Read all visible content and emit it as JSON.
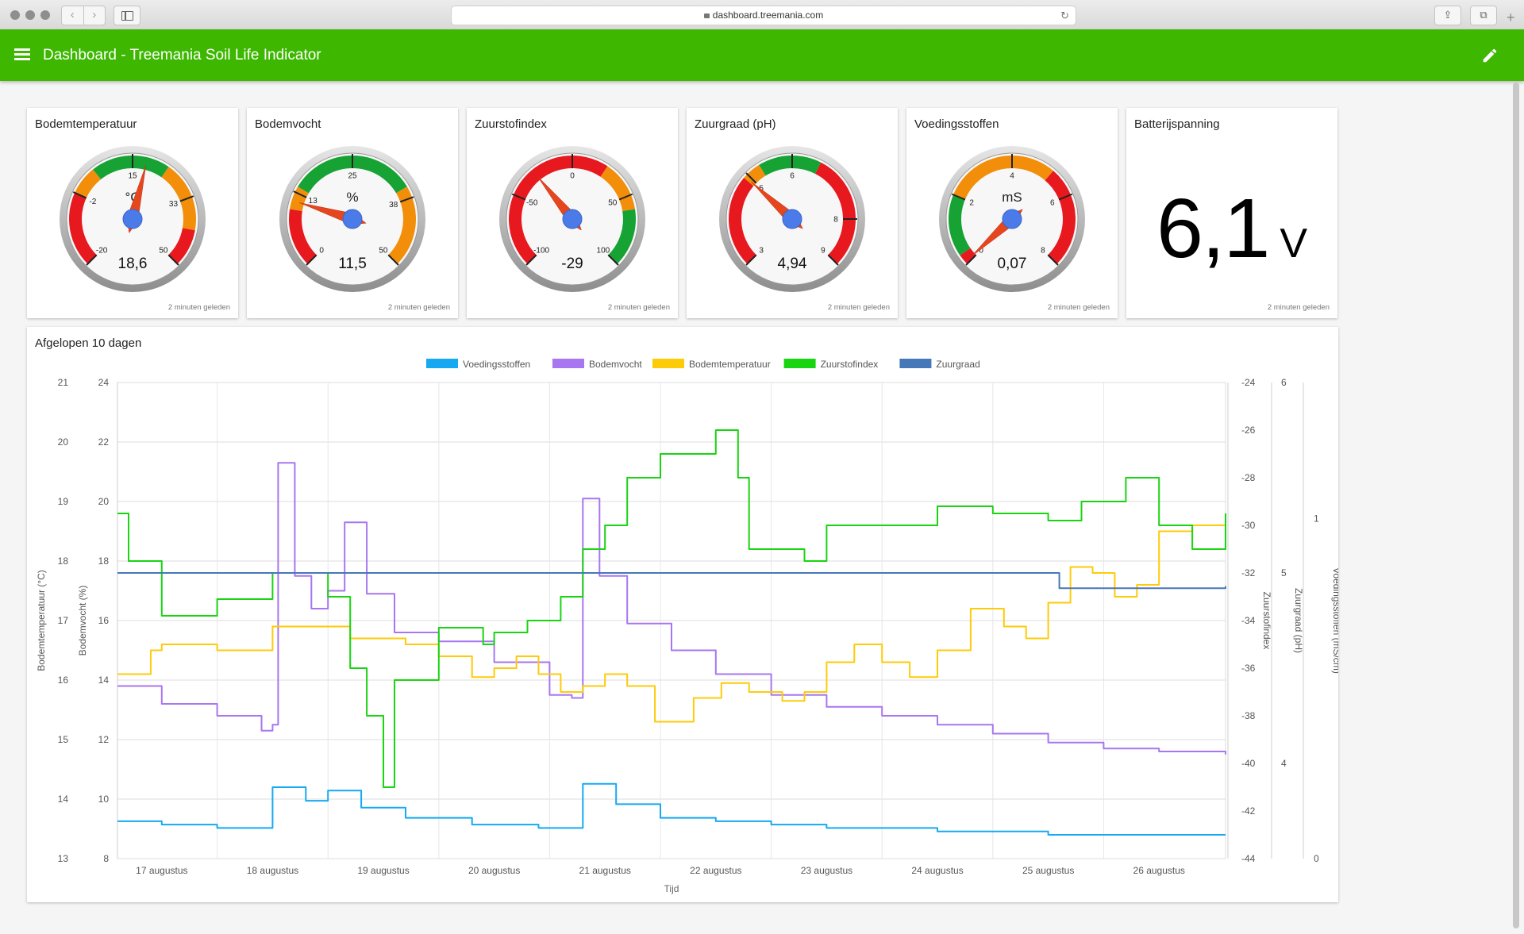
{
  "browser": {
    "url": "dashboard.treemania.com",
    "back_glyph": "‹",
    "forward_glyph": "›",
    "reload_glyph": "↻",
    "share_glyph": "⇪",
    "tabs_glyph": "⧉",
    "new_tab_glyph": "+"
  },
  "appbar": {
    "title": "Dashboard - Treemania Soil Life Indicator",
    "color": "#3db700"
  },
  "gauges": [
    {
      "title": "Bodemtemperatuur",
      "unit": "°C",
      "value": 18.6,
      "value_label": "18,6",
      "min": -20,
      "max": 50,
      "footer": "2 minuten geleden",
      "ticks": [
        {
          "v": -20,
          "l": "-20"
        },
        {
          "v": -2,
          "l": "-2"
        },
        {
          "v": 15,
          "l": "15"
        },
        {
          "v": 33,
          "l": "33"
        },
        {
          "v": 50,
          "l": "50"
        }
      ],
      "bands": [
        {
          "from": -20,
          "to": -2,
          "color": "#e8181f"
        },
        {
          "from": -2,
          "to": 5,
          "color": "#f28e09"
        },
        {
          "from": 5,
          "to": 24,
          "color": "#17a334"
        },
        {
          "from": 24,
          "to": 41,
          "color": "#f28e09"
        },
        {
          "from": 41,
          "to": 50,
          "color": "#e8181f"
        }
      ]
    },
    {
      "title": "Bodemvocht",
      "unit": "%",
      "value": 11.5,
      "value_label": "11,5",
      "min": 0,
      "max": 50,
      "footer": "2 minuten geleden",
      "ticks": [
        {
          "v": 0,
          "l": "0"
        },
        {
          "v": 13,
          "l": "13"
        },
        {
          "v": 25,
          "l": "25"
        },
        {
          "v": 38,
          "l": "38"
        },
        {
          "v": 50,
          "l": "50"
        }
      ],
      "bands": [
        {
          "from": 0,
          "to": 10,
          "color": "#e8181f"
        },
        {
          "from": 10,
          "to": 14,
          "color": "#f28e09"
        },
        {
          "from": 14,
          "to": 36,
          "color": "#17a334"
        },
        {
          "from": 36,
          "to": 50,
          "color": "#f28e09"
        }
      ]
    },
    {
      "title": "Zuurstofindex",
      "unit": "",
      "value": -29,
      "value_label": "-29",
      "min": -100,
      "max": 100,
      "footer": "2 minuten geleden",
      "ticks": [
        {
          "v": -100,
          "l": "-100"
        },
        {
          "v": -50,
          "l": "-50"
        },
        {
          "v": 0,
          "l": "0"
        },
        {
          "v": 50,
          "l": "50"
        },
        {
          "v": 100,
          "l": "100"
        }
      ],
      "bands": [
        {
          "from": -100,
          "to": 25,
          "color": "#e8181f"
        },
        {
          "from": 25,
          "to": 60,
          "color": "#f28e09"
        },
        {
          "from": 60,
          "to": 100,
          "color": "#17a334"
        }
      ]
    },
    {
      "title": "Zuurgraad (pH)",
      "unit": "",
      "value": 4.94,
      "value_label": "4,94",
      "min": 3,
      "max": 9,
      "footer": "2 minuten geleden",
      "ticks": [
        {
          "v": 3,
          "l": "3"
        },
        {
          "v": 5,
          "l": "5"
        },
        {
          "v": 6,
          "l": "6"
        },
        {
          "v": 8,
          "l": "8"
        },
        {
          "v": 9,
          "l": "9"
        }
      ],
      "bands": [
        {
          "from": 3,
          "to": 4.9,
          "color": "#e8181f"
        },
        {
          "from": 4.9,
          "to": 5.3,
          "color": "#f28e09"
        },
        {
          "from": 5.3,
          "to": 6.6,
          "color": "#17a334"
        },
        {
          "from": 6.6,
          "to": 9,
          "color": "#e8181f"
        }
      ]
    },
    {
      "title": "Voedingsstoffen",
      "unit": "mS",
      "value": 0.07,
      "value_label": "0,07",
      "min": 0,
      "max": 8,
      "footer": "2 minuten geleden",
      "ticks": [
        {
          "v": 0,
          "l": "0"
        },
        {
          "v": 2,
          "l": "2"
        },
        {
          "v": 4,
          "l": "4"
        },
        {
          "v": 6,
          "l": "6"
        },
        {
          "v": 8,
          "l": "8"
        }
      ],
      "bands": [
        {
          "from": 0,
          "to": 0.3,
          "color": "#e8181f"
        },
        {
          "from": 0.3,
          "to": 2,
          "color": "#17a334"
        },
        {
          "from": 2,
          "to": 5.2,
          "color": "#f28e09"
        },
        {
          "from": 5.2,
          "to": 8,
          "color": "#e8181f"
        }
      ]
    }
  ],
  "battery": {
    "title": "Batterijspanning",
    "value": "6,1",
    "unit": "V",
    "footer": "2 minuten geleden"
  },
  "chart_title": "Afgelopen 10 dagen",
  "chart_data": {
    "type": "line",
    "xlabel": "Tijd",
    "x_tick_labels": [
      "17 augustus",
      "18 augustus",
      "19 augustus",
      "20 augustus",
      "21 augustus",
      "22 augustus",
      "23 augustus",
      "24 augustus",
      "25 augustus",
      "26 augustus"
    ],
    "x_range_days": [
      16.6,
      26.6
    ],
    "grid": true,
    "legend_position": "top",
    "axes": [
      {
        "id": "temp",
        "label": "Bodemtemperatuur (°C)",
        "side": "left",
        "range": [
          13,
          21
        ],
        "ticks": [
          13,
          14,
          15,
          16,
          17,
          18,
          19,
          20,
          21
        ]
      },
      {
        "id": "vocht",
        "label": "Bodemvocht (%)",
        "side": "left",
        "range": [
          8,
          24
        ],
        "ticks": [
          8,
          10,
          12,
          14,
          16,
          18,
          20,
          22,
          24
        ]
      },
      {
        "id": "zuurstof",
        "label": "Zuurstofindex",
        "side": "right",
        "range": [
          -44,
          -24
        ],
        "ticks": [
          -44,
          -42,
          -40,
          -38,
          -36,
          -34,
          -32,
          -30,
          -28,
          -26,
          -24
        ]
      },
      {
        "id": "ph",
        "label": "Zuurgraad (pH)",
        "side": "right",
        "range": [
          3.5,
          6
        ],
        "ticks": [
          4,
          5,
          6
        ]
      },
      {
        "id": "ec",
        "label": "Voedingsstoffen (mS/cm)",
        "side": "right",
        "range": [
          0,
          1.4
        ],
        "ticks": [
          0,
          1
        ]
      }
    ],
    "series": [
      {
        "name": "Voedingsstoffen",
        "axis": "ec",
        "color": "#16a9f2",
        "points": [
          [
            16.6,
            0.11
          ],
          [
            17.0,
            0.1
          ],
          [
            17.5,
            0.09
          ],
          [
            17.95,
            0.09
          ],
          [
            18.0,
            0.21
          ],
          [
            18.3,
            0.17
          ],
          [
            18.5,
            0.2
          ],
          [
            18.8,
            0.15
          ],
          [
            19.2,
            0.12
          ],
          [
            19.8,
            0.1
          ],
          [
            20.4,
            0.09
          ],
          [
            20.7,
            0.09
          ],
          [
            20.8,
            0.22
          ],
          [
            21.1,
            0.16
          ],
          [
            21.5,
            0.12
          ],
          [
            22.0,
            0.11
          ],
          [
            22.5,
            0.1
          ],
          [
            23.0,
            0.09
          ],
          [
            24.0,
            0.08
          ],
          [
            25.0,
            0.07
          ],
          [
            26.6,
            0.07
          ]
        ]
      },
      {
        "name": "Bodemvocht",
        "axis": "vocht",
        "color": "#a776f0",
        "points": [
          [
            16.6,
            13.8
          ],
          [
            17.0,
            13.2
          ],
          [
            17.5,
            12.8
          ],
          [
            17.9,
            12.3
          ],
          [
            18.0,
            12.5
          ],
          [
            18.05,
            21.3
          ],
          [
            18.2,
            17.5
          ],
          [
            18.35,
            16.4
          ],
          [
            18.5,
            17.0
          ],
          [
            18.65,
            19.3
          ],
          [
            18.85,
            16.9
          ],
          [
            19.1,
            15.6
          ],
          [
            19.5,
            15.3
          ],
          [
            20.0,
            14.6
          ],
          [
            20.5,
            13.5
          ],
          [
            20.7,
            13.4
          ],
          [
            20.8,
            20.1
          ],
          [
            20.95,
            17.5
          ],
          [
            21.2,
            15.9
          ],
          [
            21.6,
            15.0
          ],
          [
            22.0,
            14.2
          ],
          [
            22.5,
            13.5
          ],
          [
            23.0,
            13.1
          ],
          [
            23.5,
            12.8
          ],
          [
            24.0,
            12.5
          ],
          [
            24.5,
            12.2
          ],
          [
            25.0,
            11.9
          ],
          [
            25.5,
            11.7
          ],
          [
            26.0,
            11.6
          ],
          [
            26.6,
            11.5
          ]
        ]
      },
      {
        "name": "Bodemtemperatuur",
        "axis": "temp",
        "color": "#fecb08",
        "points": [
          [
            16.6,
            16.1
          ],
          [
            16.9,
            16.5
          ],
          [
            17.0,
            16.6
          ],
          [
            17.5,
            16.5
          ],
          [
            17.9,
            16.5
          ],
          [
            18.0,
            16.9
          ],
          [
            18.4,
            16.9
          ],
          [
            18.7,
            16.7
          ],
          [
            19.2,
            16.6
          ],
          [
            19.5,
            16.4
          ],
          [
            19.8,
            16.05
          ],
          [
            20.0,
            16.2
          ],
          [
            20.2,
            16.4
          ],
          [
            20.4,
            16.1
          ],
          [
            20.6,
            15.8
          ],
          [
            20.8,
            15.9
          ],
          [
            21.0,
            16.1
          ],
          [
            21.2,
            15.9
          ],
          [
            21.45,
            15.3
          ],
          [
            21.8,
            15.7
          ],
          [
            22.05,
            15.95
          ],
          [
            22.3,
            15.8
          ],
          [
            22.6,
            15.65
          ],
          [
            22.8,
            15.8
          ],
          [
            23.0,
            16.3
          ],
          [
            23.25,
            16.6
          ],
          [
            23.5,
            16.3
          ],
          [
            23.75,
            16.05
          ],
          [
            24.0,
            16.5
          ],
          [
            24.3,
            17.2
          ],
          [
            24.6,
            16.9
          ],
          [
            24.8,
            16.7
          ],
          [
            25.0,
            17.3
          ],
          [
            25.2,
            17.9
          ],
          [
            25.4,
            17.8
          ],
          [
            25.6,
            17.4
          ],
          [
            25.8,
            17.6
          ],
          [
            26.0,
            18.5
          ],
          [
            26.3,
            18.6
          ],
          [
            26.6,
            18.6
          ]
        ]
      },
      {
        "name": "Zuurstofindex",
        "axis": "zuurstof",
        "color": "#19d411",
        "points": [
          [
            16.6,
            -29.5
          ],
          [
            16.7,
            -31.5
          ],
          [
            17.0,
            -33.8
          ],
          [
            17.5,
            -33.1
          ],
          [
            18.0,
            -32.0
          ],
          [
            18.5,
            -33.0
          ],
          [
            18.7,
            -36.0
          ],
          [
            18.85,
            -38.0
          ],
          [
            19.0,
            -41.0
          ],
          [
            19.1,
            -36.5
          ],
          [
            19.5,
            -34.3
          ],
          [
            19.9,
            -35.0
          ],
          [
            20.0,
            -34.5
          ],
          [
            20.3,
            -34.0
          ],
          [
            20.6,
            -33.0
          ],
          [
            20.8,
            -31.0
          ],
          [
            21.0,
            -30.0
          ],
          [
            21.2,
            -28.0
          ],
          [
            21.5,
            -27.0
          ],
          [
            21.8,
            -27.0
          ],
          [
            22.0,
            -26.0
          ],
          [
            22.2,
            -28.0
          ],
          [
            22.3,
            -31.0
          ],
          [
            22.8,
            -31.5
          ],
          [
            23.0,
            -30.0
          ],
          [
            23.5,
            -30.0
          ],
          [
            24.0,
            -29.2
          ],
          [
            24.5,
            -29.5
          ],
          [
            25.0,
            -29.8
          ],
          [
            25.3,
            -29.0
          ],
          [
            25.7,
            -28.0
          ],
          [
            26.0,
            -30.0
          ],
          [
            26.3,
            -31.0
          ],
          [
            26.6,
            -29.5
          ]
        ]
      },
      {
        "name": "Zuurgraad",
        "axis": "ph",
        "color": "#4677b8",
        "points": [
          [
            16.6,
            5.0
          ],
          [
            18.0,
            5.0
          ],
          [
            19.0,
            5.0
          ],
          [
            20.0,
            5.0
          ],
          [
            21.0,
            5.0
          ],
          [
            22.0,
            5.0
          ],
          [
            23.0,
            5.0
          ],
          [
            24.0,
            5.0
          ],
          [
            25.0,
            5.0
          ],
          [
            25.1,
            4.92
          ],
          [
            25.4,
            4.92
          ],
          [
            26.6,
            4.93
          ]
        ]
      }
    ]
  }
}
